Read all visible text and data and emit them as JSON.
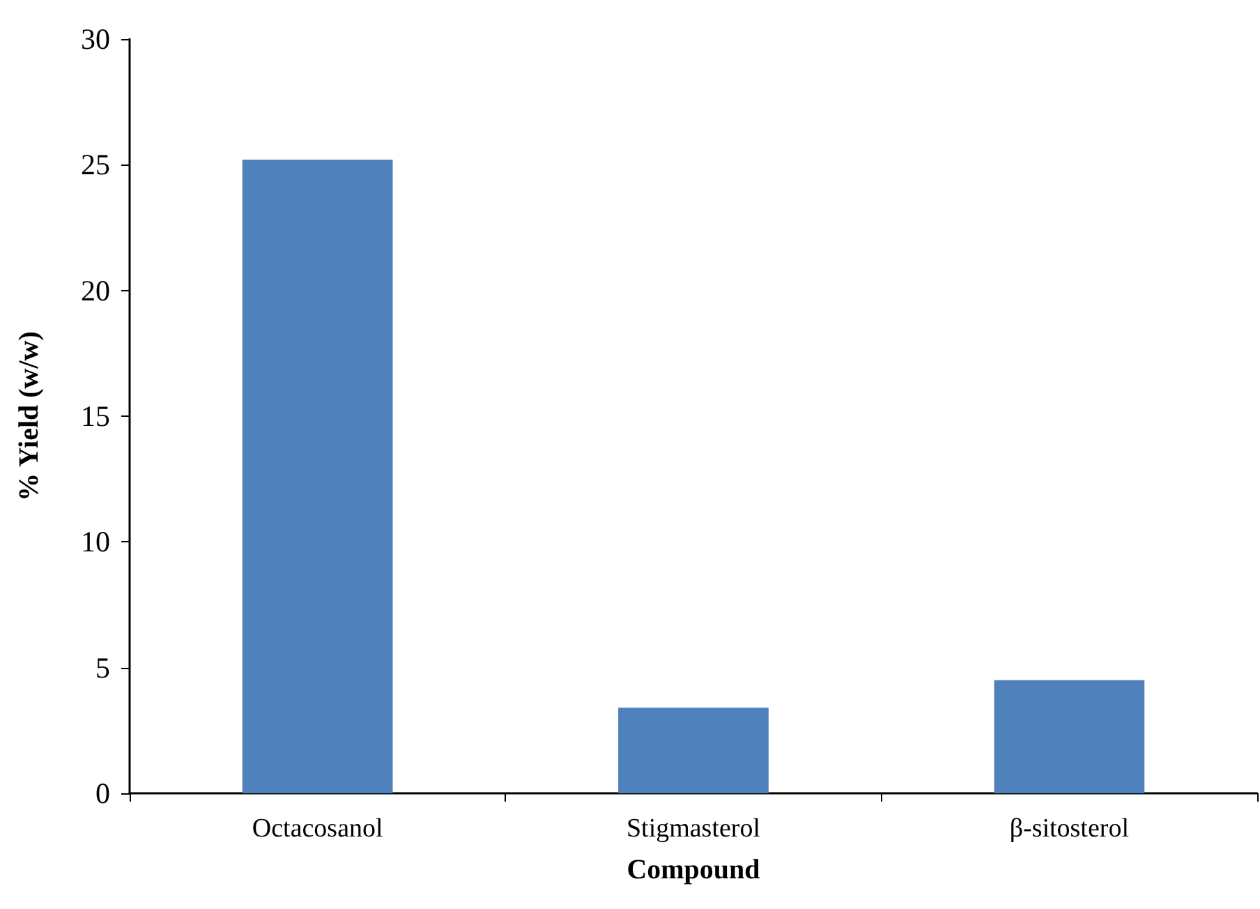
{
  "chart_data": {
    "type": "bar",
    "xlabel": "Compound",
    "ylabel": "% Yield (w/w)",
    "categories": [
      "Octacosanol",
      "Stigmasterol",
      "β-sitosterol"
    ],
    "values": [
      25.2,
      3.4,
      4.5
    ],
    "color": "#4f81bd",
    "ylim": [
      0,
      30
    ],
    "yticks": [
      0,
      5,
      10,
      15,
      20,
      25,
      30
    ],
    "grid": false
  }
}
